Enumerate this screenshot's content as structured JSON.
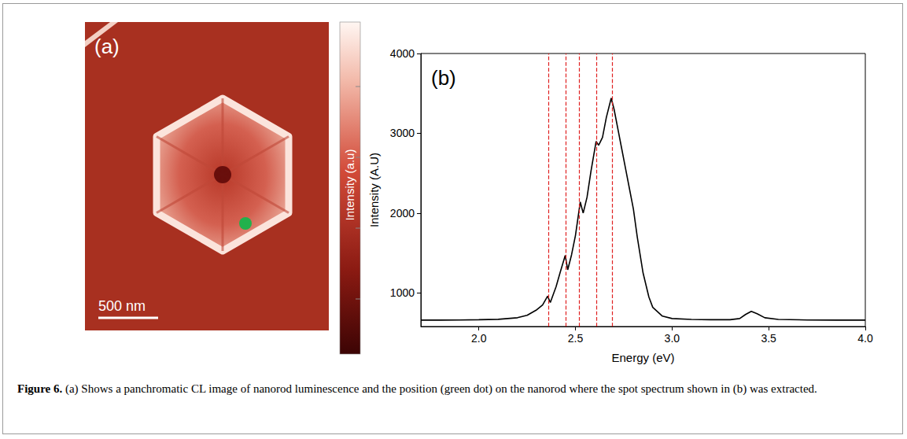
{
  "image_panel": {
    "letter": "(a)",
    "scale_bar": "500 nm",
    "colorbar_label": "Intensity (a.u)"
  },
  "chart_data": {
    "type": "line",
    "annotations": [
      "(b)"
    ],
    "x_label": "Energy (eV)",
    "y_label": "Intensity (A.U)",
    "x": [
      1.7,
      1.8,
      1.9,
      2.0,
      2.1,
      2.2,
      2.25,
      2.3,
      2.33,
      2.356,
      2.37,
      2.4,
      2.42,
      2.447,
      2.46,
      2.48,
      2.5,
      2.525,
      2.54,
      2.56,
      2.58,
      2.607,
      2.62,
      2.64,
      2.66,
      2.685,
      2.7,
      2.72,
      2.74,
      2.76,
      2.78,
      2.8,
      2.82,
      2.85,
      2.88,
      2.9,
      2.95,
      3.0,
      3.1,
      3.2,
      3.3,
      3.35,
      3.38,
      3.41,
      3.44,
      3.48,
      3.55,
      3.7,
      3.85,
      4.0
    ],
    "values": [
      660,
      660,
      662,
      665,
      670,
      690,
      720,
      790,
      850,
      960,
      880,
      1080,
      1250,
      1470,
      1290,
      1480,
      1720,
      2140,
      2000,
      2200,
      2520,
      2900,
      2850,
      2950,
      3200,
      3440,
      3300,
      3050,
      2800,
      2550,
      2300,
      2050,
      1700,
      1250,
      950,
      820,
      710,
      680,
      668,
      665,
      665,
      680,
      730,
      770,
      740,
      690,
      668,
      662,
      660,
      660
    ],
    "color": "#000000",
    "xlim": [
      1.7,
      4.0
    ],
    "xticks": [
      {
        "value": 2.0,
        "label": "2.0"
      },
      {
        "value": 2.5,
        "label": "2.5"
      },
      {
        "value": 3.0,
        "label": "3.0"
      },
      {
        "value": 3.5,
        "label": "3.5"
      },
      {
        "value": 4.0,
        "label": "4.0"
      }
    ],
    "ylim": [
      580,
      4000
    ],
    "yticks": [
      1000,
      2000,
      3000,
      4000
    ],
    "grid": false,
    "reference_lines": {
      "x": [
        2.356,
        2.447,
        2.525,
        2.607,
        2.685
      ],
      "color": "#e02020",
      "line_style": "dashed"
    }
  },
  "caption": {
    "label": "Figure 6.",
    "text": "(a) Shows a panchromatic CL image of nanorod luminescence and the position (green dot) on the nanorod where the spot spectrum shown in (b) was extracted."
  }
}
